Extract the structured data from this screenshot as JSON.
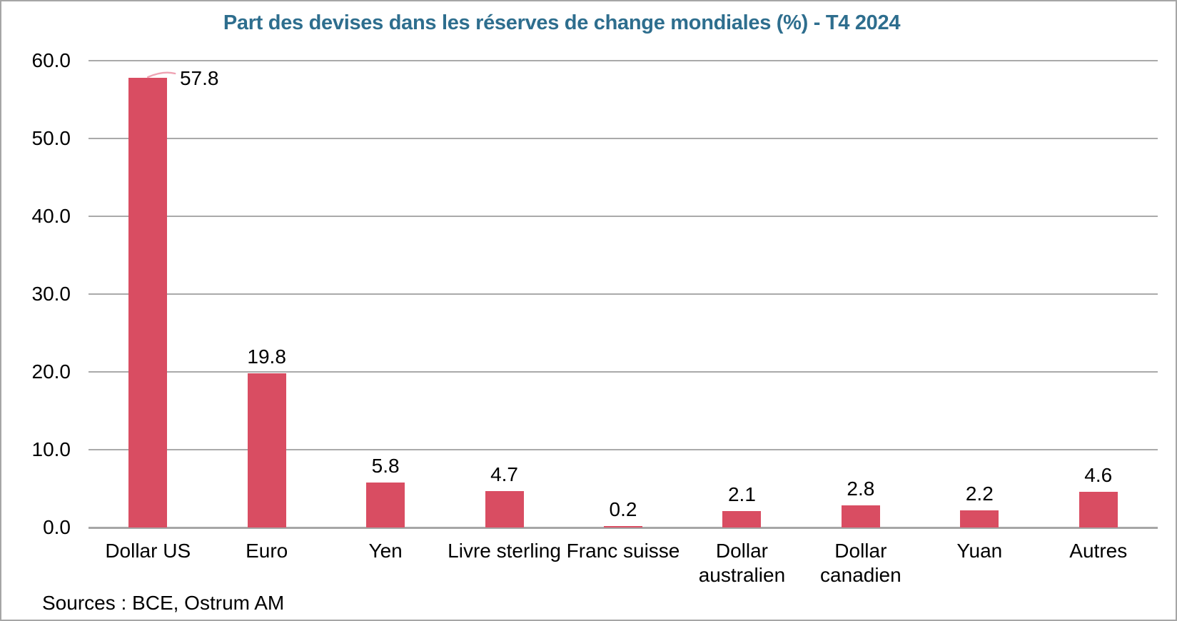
{
  "chart_data": {
    "type": "bar",
    "title": "Part des devises dans les réserves de change mondiales (%) - T4 2024",
    "categories": [
      "Dollar US",
      "Euro",
      "Yen",
      "Livre sterling",
      "Franc suisse",
      "Dollar australien",
      "Dollar canadien",
      "Yuan",
      "Autres"
    ],
    "category_lines": [
      [
        "Dollar US"
      ],
      [
        "Euro"
      ],
      [
        "Yen"
      ],
      [
        "Livre sterling"
      ],
      [
        "Franc suisse"
      ],
      [
        "Dollar",
        "australien"
      ],
      [
        "Dollar",
        "canadien"
      ],
      [
        "Yuan"
      ],
      [
        "Autres"
      ]
    ],
    "values": [
      57.8,
      19.8,
      5.8,
      4.7,
      0.2,
      2.1,
      2.8,
      2.2,
      4.6
    ],
    "value_labels": [
      "57.8",
      "19.8",
      "5.8",
      "4.7",
      "0.2",
      "2.1",
      "2.8",
      "2.2",
      "4.6"
    ],
    "ylim": [
      0,
      60
    ],
    "yticks": [
      0,
      10,
      20,
      30,
      40,
      50,
      60
    ],
    "ytick_labels": [
      "0.0",
      "10.0",
      "20.0",
      "30.0",
      "40.0",
      "50.0",
      "60.0"
    ],
    "grid": true,
    "legend": "none",
    "xlabel": "",
    "ylabel": "",
    "source": "Sources : BCE, Ostrum AM",
    "colors": {
      "bar": "#d94d62",
      "title": "#2e6e8e",
      "gridline": "#aaaaaa",
      "axis": "#a6a6a6",
      "text": "#000000",
      "leader_line": "#efa3b3"
    }
  }
}
